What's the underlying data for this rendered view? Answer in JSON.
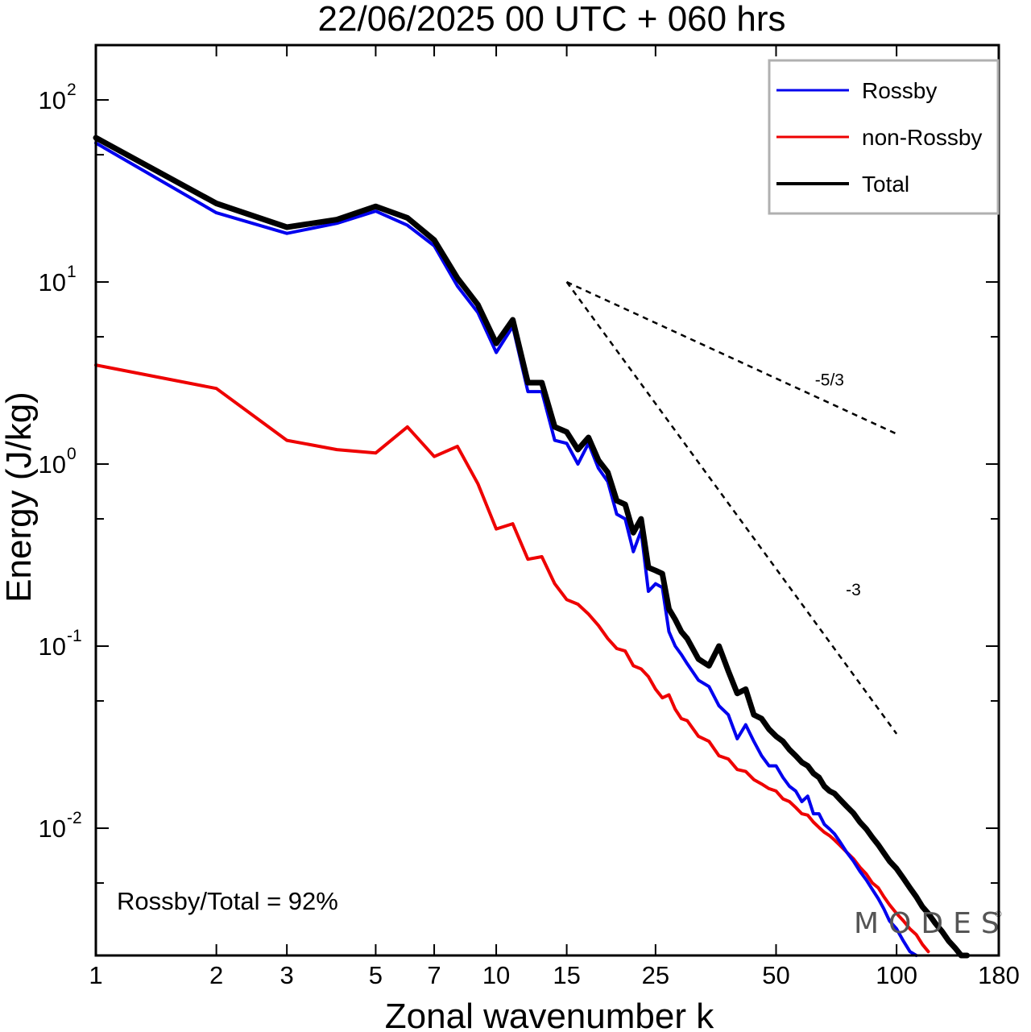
{
  "chart_data": {
    "type": "line",
    "title": "22/06/2025  00 UTC  + 060 hrs",
    "xlabel": "Zonal wavenumber k",
    "ylabel": "Energy (J/kg)",
    "xscale": "log",
    "yscale": "log",
    "xlim": [
      1,
      180
    ],
    "ylim": [
      0.002,
      200
    ],
    "xticks": [
      1,
      2,
      3,
      5,
      7,
      10,
      15,
      25,
      50,
      100,
      180
    ],
    "yticks": [
      {
        "base": "10",
        "exp": "2",
        "value": 100
      },
      {
        "base": "10",
        "exp": "1",
        "value": 10
      },
      {
        "base": "10",
        "exp": "0",
        "value": 1
      },
      {
        "base": "10",
        "exp": "-1",
        "value": 0.1
      },
      {
        "base": "10",
        "exp": "-2",
        "value": 0.01
      }
    ],
    "grid": false,
    "legend_position": "top-right",
    "annotation": "Rossby/Total = 92%",
    "watermark": "MODES",
    "watermark_mark": "©",
    "series": [
      {
        "name": "Rossby",
        "color": "#0000ee",
        "width": 4,
        "x": [
          1,
          2,
          3,
          4,
          5,
          6,
          7,
          8,
          9,
          10,
          11,
          12,
          13,
          14,
          15,
          16,
          17,
          18,
          19,
          20,
          21,
          22,
          23,
          24,
          25,
          26,
          27,
          28,
          29,
          30,
          32,
          34,
          36,
          38,
          40,
          42,
          44,
          46,
          48,
          50,
          52,
          54,
          56,
          58,
          60,
          62,
          64,
          66,
          68,
          70,
          72,
          75,
          78,
          81,
          84,
          87,
          90,
          93,
          96,
          100,
          104,
          108,
          112
        ],
        "y": [
          58,
          24,
          18.5,
          21,
          24.5,
          20.5,
          15.8,
          9.5,
          6.8,
          4.1,
          5.7,
          2.5,
          2.5,
          1.35,
          1.3,
          1.0,
          1.3,
          0.95,
          0.8,
          0.53,
          0.5,
          0.33,
          0.43,
          0.2,
          0.22,
          0.21,
          0.12,
          0.1,
          0.09,
          0.08,
          0.065,
          0.06,
          0.047,
          0.042,
          0.031,
          0.037,
          0.03,
          0.025,
          0.022,
          0.022,
          0.019,
          0.017,
          0.016,
          0.014,
          0.015,
          0.012,
          0.012,
          0.0105,
          0.0099,
          0.0093,
          0.0085,
          0.0074,
          0.0066,
          0.0058,
          0.0052,
          0.0046,
          0.0041,
          0.0036,
          0.0031,
          0.0028,
          0.0024,
          0.0021,
          0.0019
        ]
      },
      {
        "name": "non-Rossby",
        "color": "#ee0000",
        "width": 4,
        "x": [
          1,
          2,
          3,
          4,
          5,
          6,
          7,
          8,
          9,
          10,
          11,
          12,
          13,
          14,
          15,
          16,
          17,
          18,
          19,
          20,
          21,
          22,
          23,
          24,
          25,
          26,
          27,
          28,
          29,
          30,
          32,
          34,
          36,
          38,
          40,
          42,
          44,
          46,
          48,
          50,
          52,
          54,
          56,
          58,
          60,
          62,
          64,
          66,
          68,
          70,
          72,
          75,
          78,
          81,
          84,
          87,
          90,
          93,
          96,
          100,
          104,
          108,
          112,
          116,
          120
        ],
        "y": [
          3.5,
          2.6,
          1.35,
          1.2,
          1.15,
          1.6,
          1.1,
          1.25,
          0.78,
          0.44,
          0.47,
          0.3,
          0.31,
          0.22,
          0.18,
          0.17,
          0.15,
          0.13,
          0.11,
          0.097,
          0.094,
          0.078,
          0.075,
          0.068,
          0.058,
          0.052,
          0.054,
          0.045,
          0.04,
          0.039,
          0.032,
          0.03,
          0.025,
          0.024,
          0.021,
          0.0205,
          0.0185,
          0.0175,
          0.0165,
          0.016,
          0.0145,
          0.014,
          0.013,
          0.012,
          0.0118,
          0.0108,
          0.0101,
          0.0095,
          0.0091,
          0.0086,
          0.0081,
          0.0074,
          0.0068,
          0.0061,
          0.0056,
          0.005,
          0.0047,
          0.0042,
          0.0038,
          0.0034,
          0.0031,
          0.0028,
          0.0026,
          0.0023,
          0.0021
        ]
      },
      {
        "name": "Total",
        "color": "#000000",
        "width": 7,
        "x": [
          1,
          2,
          3,
          4,
          5,
          6,
          7,
          8,
          9,
          10,
          11,
          12,
          13,
          14,
          15,
          16,
          17,
          18,
          19,
          20,
          21,
          22,
          23,
          24,
          25,
          26,
          27,
          28,
          29,
          30,
          32,
          34,
          36,
          38,
          40,
          42,
          44,
          46,
          48,
          50,
          52,
          54,
          56,
          58,
          60,
          62,
          64,
          66,
          68,
          70,
          72,
          75,
          78,
          81,
          84,
          87,
          90,
          93,
          96,
          100,
          104,
          108,
          112,
          116,
          120,
          125,
          130,
          135,
          140,
          145,
          150,
          155
        ],
        "y": [
          62,
          27,
          20,
          22,
          26,
          22.5,
          17,
          10.5,
          7.5,
          4.6,
          6.2,
          2.8,
          2.8,
          1.6,
          1.5,
          1.2,
          1.4,
          1.05,
          0.9,
          0.63,
          0.6,
          0.42,
          0.5,
          0.27,
          0.26,
          0.25,
          0.16,
          0.14,
          0.12,
          0.11,
          0.085,
          0.078,
          0.1,
          0.073,
          0.055,
          0.058,
          0.042,
          0.04,
          0.035,
          0.032,
          0.03,
          0.027,
          0.025,
          0.023,
          0.022,
          0.02,
          0.019,
          0.017,
          0.016,
          0.0155,
          0.0145,
          0.0132,
          0.0121,
          0.0108,
          0.0099,
          0.0089,
          0.0081,
          0.0073,
          0.0066,
          0.006,
          0.0053,
          0.0047,
          0.0042,
          0.0037,
          0.0034,
          0.003,
          0.0027,
          0.0024,
          0.0022,
          0.002,
          0.0018,
          0.0016
        ]
      }
    ],
    "reference_slopes": [
      {
        "label": "-5/3",
        "x_start": 15,
        "y_start": 10,
        "x_end": 101,
        "y_end": 1.45
      },
      {
        "label": "-3",
        "x_start": 15,
        "y_start": 10,
        "x_end": 100,
        "y_end": 0.033
      }
    ]
  }
}
